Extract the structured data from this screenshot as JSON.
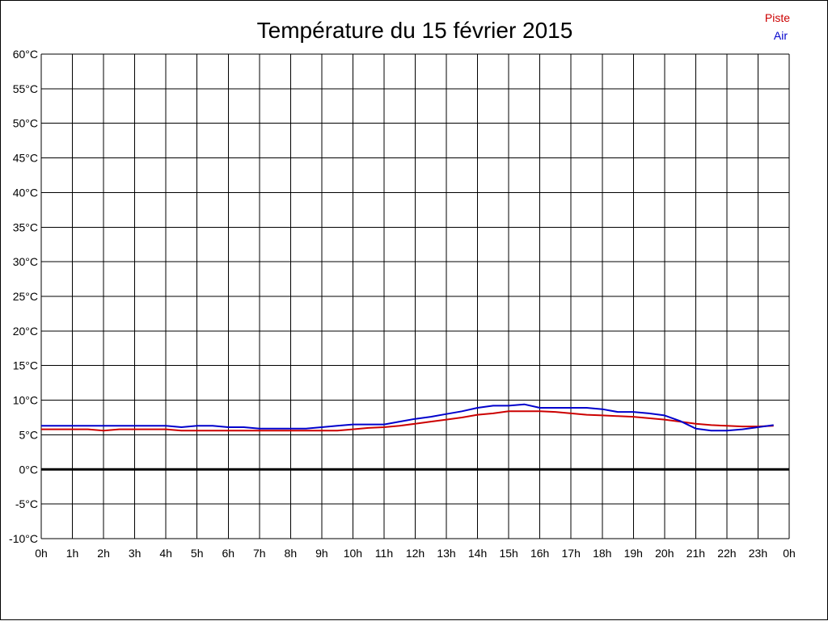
{
  "chart_data": {
    "type": "line",
    "title": "Température du 15 février 2015",
    "ylim": [
      -10,
      60
    ],
    "ystep": 5,
    "y_tick_labels": [
      "60°C",
      "55°C",
      "50°C",
      "45°C",
      "40°C",
      "35°C",
      "30°C",
      "25°C",
      "20°C",
      "15°C",
      "10°C",
      "5°C",
      "0°C",
      "-5°C",
      "-10°C"
    ],
    "x_tick_labels": [
      "0h",
      "1h",
      "2h",
      "3h",
      "4h",
      "5h",
      "6h",
      "7h",
      "8h",
      "9h",
      "10h",
      "11h",
      "12h",
      "13h",
      "14h",
      "15h",
      "16h",
      "17h",
      "18h",
      "19h",
      "20h",
      "21h",
      "22h",
      "23h",
      "0h"
    ],
    "xlim": [
      0,
      24
    ],
    "grid": true,
    "zero_line": true,
    "legend_position": "top-right",
    "series": [
      {
        "name": "Piste",
        "color": "#cc0000",
        "x": [
          0,
          0.5,
          1,
          1.5,
          2,
          2.5,
          3,
          3.5,
          4,
          4.5,
          5,
          5.5,
          6,
          6.5,
          7,
          7.5,
          8,
          8.5,
          9,
          9.5,
          10,
          10.5,
          11,
          11.5,
          12,
          12.5,
          13,
          13.5,
          14,
          14.5,
          15,
          15.5,
          16,
          16.5,
          17,
          17.5,
          18,
          18.5,
          19,
          19.5,
          20,
          20.5,
          21,
          21.5,
          22,
          22.5,
          23,
          23.5
        ],
        "values": [
          5.8,
          5.8,
          5.8,
          5.8,
          5.6,
          5.8,
          5.8,
          5.8,
          5.8,
          5.6,
          5.6,
          5.6,
          5.6,
          5.6,
          5.6,
          5.6,
          5.6,
          5.6,
          5.6,
          5.6,
          5.8,
          6.0,
          6.1,
          6.3,
          6.6,
          6.9,
          7.2,
          7.5,
          7.9,
          8.1,
          8.4,
          8.4,
          8.4,
          8.3,
          8.1,
          7.9,
          7.8,
          7.7,
          7.6,
          7.4,
          7.2,
          6.9,
          6.6,
          6.4,
          6.3,
          6.2,
          6.2,
          6.3
        ]
      },
      {
        "name": "Air",
        "color": "#0000cc",
        "x": [
          0,
          0.5,
          1,
          1.5,
          2,
          2.5,
          3,
          3.5,
          4,
          4.5,
          5,
          5.5,
          6,
          6.5,
          7,
          7.5,
          8,
          8.5,
          9,
          9.5,
          10,
          10.5,
          11,
          11.5,
          12,
          12.5,
          13,
          13.5,
          14,
          14.5,
          15,
          15.5,
          16,
          16.5,
          17,
          17.5,
          18,
          18.5,
          19,
          19.5,
          20,
          20.5,
          21,
          21.5,
          22,
          22.5,
          23,
          23.5
        ],
        "values": [
          6.3,
          6.3,
          6.3,
          6.3,
          6.3,
          6.3,
          6.3,
          6.3,
          6.3,
          6.1,
          6.3,
          6.3,
          6.1,
          6.1,
          5.9,
          5.9,
          5.9,
          5.9,
          6.1,
          6.3,
          6.5,
          6.5,
          6.5,
          6.9,
          7.3,
          7.6,
          8.0,
          8.4,
          8.9,
          9.2,
          9.2,
          9.4,
          8.9,
          8.9,
          8.9,
          8.9,
          8.7,
          8.3,
          8.3,
          8.1,
          7.8,
          7.0,
          5.9,
          5.6,
          5.6,
          5.8,
          6.1,
          6.4
        ]
      }
    ]
  }
}
